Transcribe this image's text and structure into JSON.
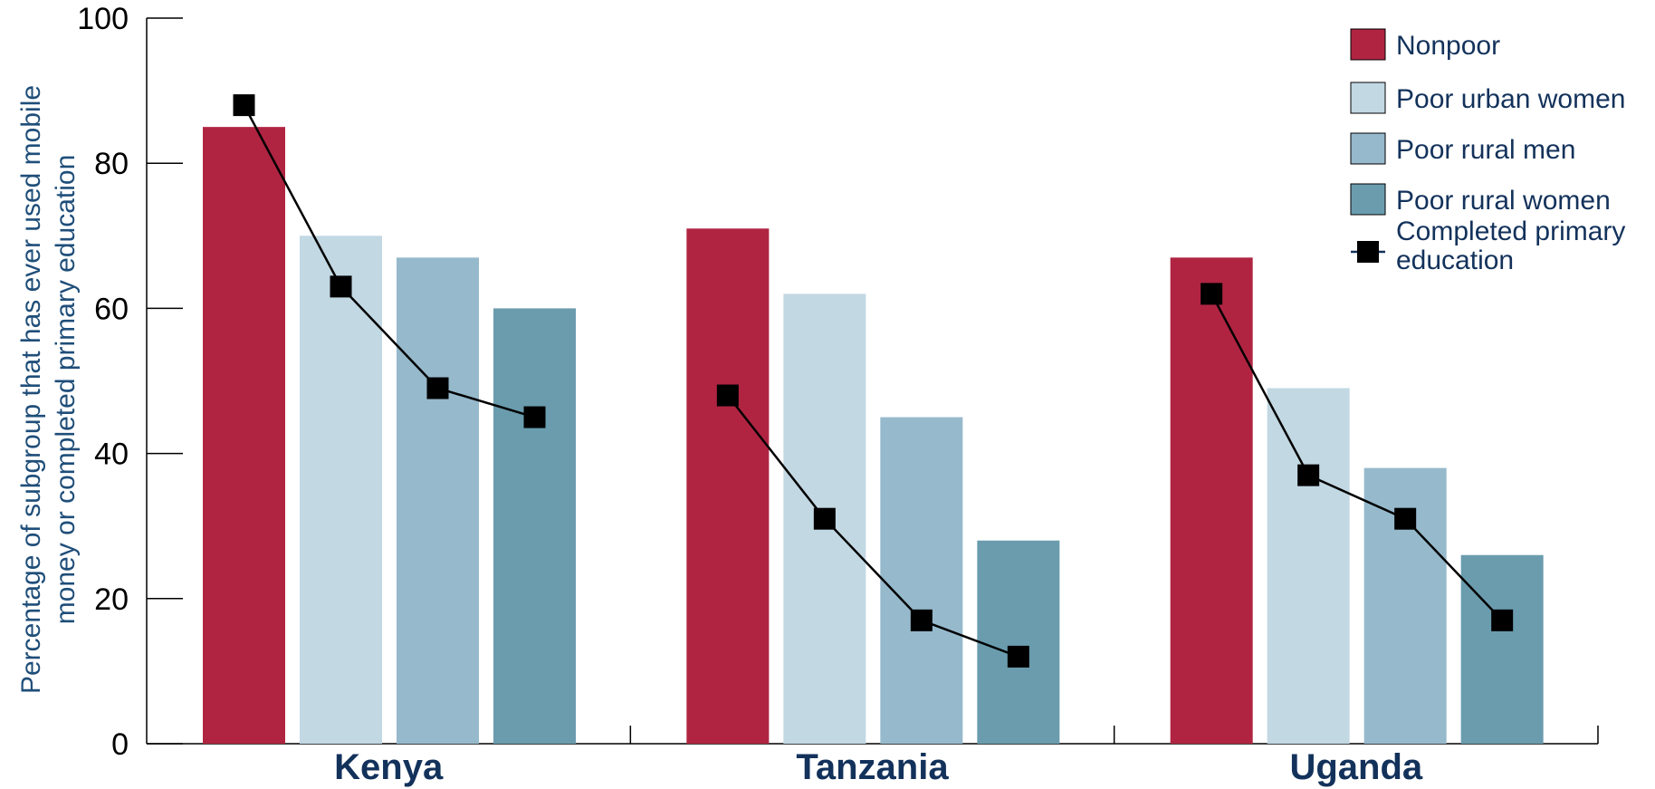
{
  "chart_data": {
    "type": "bar",
    "title": "",
    "xlabel": "",
    "ylabel_lines": [
      "Percentage of subgroup that has ever used mobile",
      "money or completed primary education"
    ],
    "ylim": [
      0,
      100
    ],
    "yticks": [
      "0",
      "20",
      "40",
      "60",
      "80",
      "100"
    ],
    "grid": false,
    "legend_position": "top-right",
    "categories": [
      "Kenya",
      "Tanzania",
      "Uganda"
    ],
    "series": [
      {
        "name": "Nonpoor",
        "color": "#b02442",
        "values": [
          85,
          71,
          67
        ]
      },
      {
        "name": "Poor urban women",
        "color": "#c2d8e3",
        "values": [
          70,
          62,
          49
        ]
      },
      {
        "name": "Poor rural men",
        "color": "#96b9cc",
        "values": [
          67,
          45,
          38
        ]
      },
      {
        "name": "Poor rural women",
        "color": "#6a9cae",
        "values": [
          60,
          28,
          26
        ]
      }
    ],
    "line_series": {
      "name_lines": [
        "Completed primary",
        "education"
      ],
      "color": "#000000",
      "marker": "square",
      "values": [
        [
          88,
          63,
          49,
          45
        ],
        [
          48,
          31,
          17,
          12
        ],
        [
          62,
          37,
          31,
          17
        ]
      ]
    }
  }
}
